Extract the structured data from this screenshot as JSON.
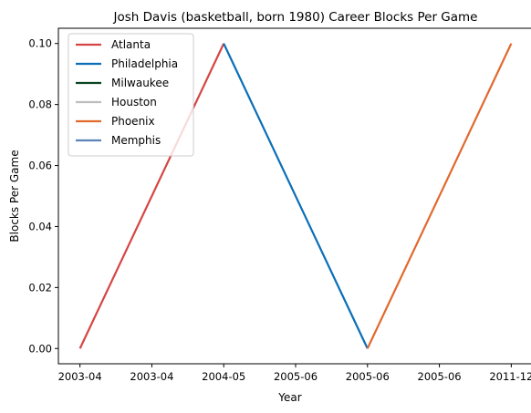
{
  "chart_data": {
    "type": "line",
    "title": "Josh Davis (basketball, born 1980) Career Blocks Per Game",
    "xlabel": "Year",
    "ylabel": "Blocks Per Game",
    "x_tick_labels": [
      "2003-04",
      "2003-04",
      "2004-05",
      "2005-06",
      "2005-06",
      "2005-06",
      "2011-12"
    ],
    "y_ticks": [
      0.0,
      0.02,
      0.04,
      0.06,
      0.08,
      0.1
    ],
    "y_tick_labels": [
      "0.00",
      "0.02",
      "0.04",
      "0.06",
      "0.08",
      "0.10"
    ],
    "xlim": [
      -0.3,
      6.3
    ],
    "ylim": [
      -0.005,
      0.105
    ],
    "legend_position": "upper-left",
    "grid": false,
    "series": [
      {
        "name": "Atlanta",
        "color": "#d64544",
        "x": [
          0,
          2
        ],
        "values": [
          0.0,
          0.1
        ]
      },
      {
        "name": "Philadelphia",
        "color": "#0a6fb8",
        "x": [
          2,
          4
        ],
        "values": [
          0.1,
          0.0
        ]
      },
      {
        "name": "Milwaukee",
        "color": "#0b4421",
        "x": [],
        "values": []
      },
      {
        "name": "Houston",
        "color": "#bdbdbd",
        "x": [],
        "values": []
      },
      {
        "name": "Phoenix",
        "color": "#e1692d",
        "x": [
          4,
          6
        ],
        "values": [
          0.0,
          0.1
        ]
      },
      {
        "name": "Memphis",
        "color": "#5b84b8",
        "x": [],
        "values": []
      }
    ]
  }
}
